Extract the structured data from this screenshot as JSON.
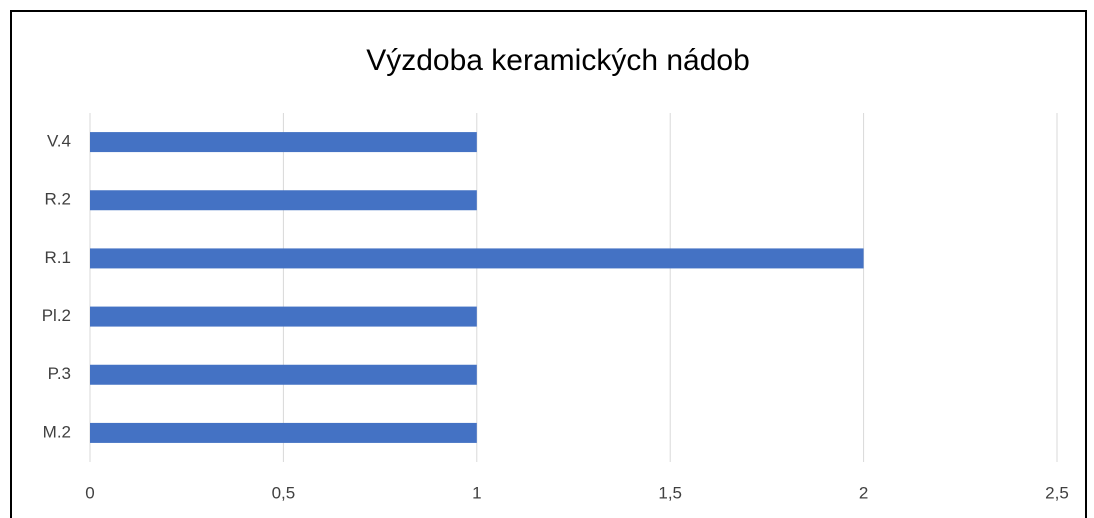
{
  "chart_data": {
    "type": "hbar",
    "title": "Výzdoba keramických nádob",
    "categories": [
      "M.2",
      "P.3",
      "Pl.2",
      "R.1",
      "R.2",
      "V.4"
    ],
    "values": [
      1,
      1,
      1,
      2,
      1,
      1
    ],
    "color": "#4472c4",
    "xlim": [
      0,
      2.5
    ],
    "xticks": [
      0,
      {
        "value": 0.5,
        "label": "0,5"
      },
      1,
      {
        "value": 1.5,
        "label": "1,5"
      },
      2,
      {
        "value": 2.5,
        "label": "2,5"
      }
    ],
    "grid": true
  }
}
